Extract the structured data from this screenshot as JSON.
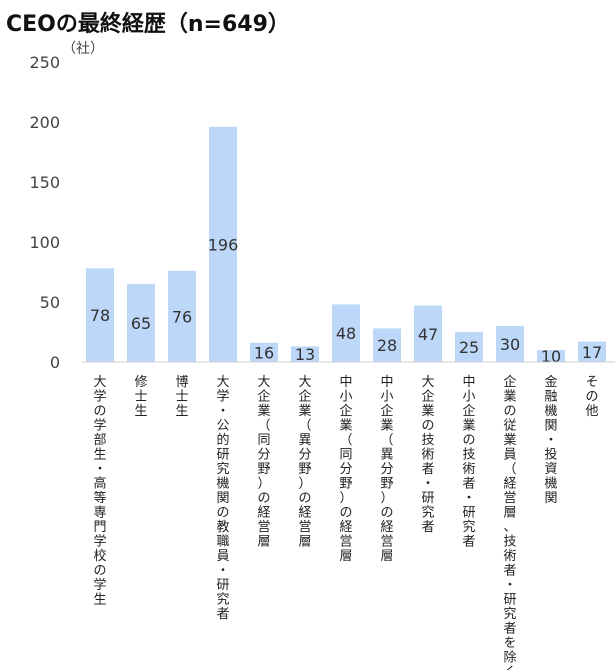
{
  "chart_data": {
    "type": "bar",
    "title": "CEOの最終経歴（n=649）",
    "unit_label": "（社）",
    "xlabel": "",
    "ylabel": "",
    "ylim": [
      0,
      250
    ],
    "yticks": [
      0,
      50,
      100,
      150,
      200,
      250
    ],
    "grid": false,
    "legend": "none",
    "bar_color": "#bdd7f9",
    "categories": [
      "大学の学部生・高等専門学校の学生",
      "修士生",
      "博士生",
      "大学・公的研究機関の教職員・研究者",
      "大企業（同分野）の経営層",
      "大企業（異分野）の経営層",
      "中小企業（同分野）の経営層",
      "中小企業（異分野）の経営層",
      "大企業の技術者・研究者",
      "中小企業の技術者・研究者",
      "企業の従業員（経営層、技術者・研究者を除く）",
      "金融機関・投資機関",
      "その他"
    ],
    "values": [
      78,
      65,
      76,
      196,
      16,
      13,
      48,
      28,
      47,
      25,
      30,
      10,
      17
    ]
  }
}
